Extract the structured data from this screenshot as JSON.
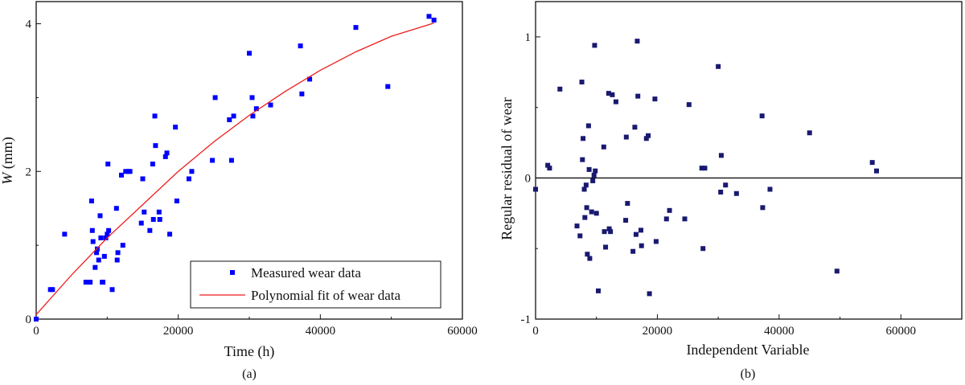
{
  "chart_data": [
    {
      "type": "scatter",
      "panel_label": "(a)",
      "xlabel": "Time (h)",
      "ylabel_var": "W",
      "ylabel_unit": " (mm)",
      "xlim": [
        0,
        60000
      ],
      "ylim": [
        0,
        4.3
      ],
      "xticks": [
        0,
        20000,
        40000,
        60000
      ],
      "yticks": [
        0,
        2,
        4
      ],
      "grid": false,
      "legend": "bottom-right",
      "series": [
        {
          "name": "Measured wear data",
          "kind": "scatter",
          "color": "#0000ff",
          "points": [
            [
              0,
              0
            ],
            [
              2000,
              0.4
            ],
            [
              2300,
              0.4
            ],
            [
              4000,
              1.15
            ],
            [
              7000,
              0.5
            ],
            [
              7300,
              0.5
            ],
            [
              7600,
              0.5
            ],
            [
              7800,
              1.6
            ],
            [
              7900,
              1.2
            ],
            [
              8000,
              1.05
            ],
            [
              8300,
              0.7
            ],
            [
              8500,
              0.9
            ],
            [
              8600,
              0.95
            ],
            [
              8800,
              0.8
            ],
            [
              9000,
              1.4
            ],
            [
              9100,
              1.1
            ],
            [
              9300,
              0.5
            ],
            [
              9400,
              0.5
            ],
            [
              9600,
              0.85
            ],
            [
              9800,
              1.1
            ],
            [
              10000,
              1.15
            ],
            [
              10100,
              2.1
            ],
            [
              10200,
              1.2
            ],
            [
              10700,
              0.4
            ],
            [
              11300,
              1.5
            ],
            [
              11400,
              0.8
            ],
            [
              11500,
              0.9
            ],
            [
              12000,
              1.95
            ],
            [
              12200,
              1.0
            ],
            [
              12600,
              2.0
            ],
            [
              13000,
              2.0
            ],
            [
              13200,
              2.0
            ],
            [
              14800,
              1.3
            ],
            [
              15000,
              1.9
            ],
            [
              15200,
              1.45
            ],
            [
              16000,
              1.2
            ],
            [
              16400,
              2.1
            ],
            [
              16500,
              1.35
            ],
            [
              16700,
              2.75
            ],
            [
              16800,
              2.35
            ],
            [
              17300,
              1.45
            ],
            [
              17400,
              1.35
            ],
            [
              18200,
              2.2
            ],
            [
              18400,
              2.25
            ],
            [
              18800,
              1.15
            ],
            [
              19600,
              2.6
            ],
            [
              19800,
              1.6
            ],
            [
              21500,
              1.9
            ],
            [
              21900,
              2.0
            ],
            [
              24800,
              2.15
            ],
            [
              25200,
              3.0
            ],
            [
              27200,
              2.7
            ],
            [
              27500,
              2.15
            ],
            [
              27800,
              2.75
            ],
            [
              30000,
              3.6
            ],
            [
              30400,
              3.0
            ],
            [
              30500,
              2.75
            ],
            [
              31000,
              2.85
            ],
            [
              33000,
              2.9
            ],
            [
              37200,
              3.7
            ],
            [
              37400,
              3.05
            ],
            [
              38500,
              3.25
            ],
            [
              45000,
              3.95
            ],
            [
              49500,
              3.15
            ],
            [
              55300,
              4.1
            ],
            [
              56000,
              4.05
            ]
          ]
        },
        {
          "name": "Polynomial fit of wear data",
          "kind": "line",
          "color": "#ee1c1c",
          "points": [
            [
              0,
              0.06
            ],
            [
              5000,
              0.6
            ],
            [
              10000,
              1.1
            ],
            [
              15000,
              1.55
            ],
            [
              20000,
              2.0
            ],
            [
              25000,
              2.4
            ],
            [
              30000,
              2.76
            ],
            [
              35000,
              3.08
            ],
            [
              40000,
              3.37
            ],
            [
              45000,
              3.62
            ],
            [
              50000,
              3.83
            ],
            [
              56000,
              4.01
            ]
          ]
        }
      ]
    },
    {
      "type": "scatter",
      "panel_label": "(b)",
      "xlabel": "Independent Variable",
      "ylabel": "Regular residual of  wear",
      "xlim": [
        0,
        70000
      ],
      "ylim": [
        -1,
        1.25
      ],
      "xticks": [
        0,
        20000,
        40000,
        60000
      ],
      "yticks": [
        -1,
        0,
        1
      ],
      "grid": false,
      "zero_line": true,
      "series": [
        {
          "kind": "scatter",
          "color": "#191970",
          "points": [
            [
              0,
              -0.08
            ],
            [
              2000,
              0.09
            ],
            [
              2300,
              0.07
            ],
            [
              4000,
              0.63
            ],
            [
              6800,
              -0.34
            ],
            [
              7300,
              -0.41
            ],
            [
              7600,
              0.68
            ],
            [
              7700,
              0.13
            ],
            [
              7800,
              0.28
            ],
            [
              8000,
              -0.08
            ],
            [
              8100,
              -0.28
            ],
            [
              8300,
              -0.05
            ],
            [
              8400,
              -0.21
            ],
            [
              8500,
              -0.54
            ],
            [
              8700,
              0.37
            ],
            [
              8800,
              0.06
            ],
            [
              8900,
              -0.57
            ],
            [
              9200,
              -0.24
            ],
            [
              9400,
              -0.02
            ],
            [
              9600,
              0.02
            ],
            [
              9700,
              0.94
            ],
            [
              9800,
              0.05
            ],
            [
              10000,
              -0.25
            ],
            [
              10300,
              -0.8
            ],
            [
              11200,
              0.22
            ],
            [
              11300,
              -0.38
            ],
            [
              11500,
              -0.49
            ],
            [
              12000,
              0.6
            ],
            [
              12100,
              -0.36
            ],
            [
              12300,
              -0.38
            ],
            [
              12600,
              0.59
            ],
            [
              13200,
              0.54
            ],
            [
              14800,
              -0.3
            ],
            [
              14900,
              0.29
            ],
            [
              15100,
              -0.18
            ],
            [
              16000,
              -0.52
            ],
            [
              16300,
              0.36
            ],
            [
              16500,
              -0.4
            ],
            [
              16700,
              0.97
            ],
            [
              16800,
              0.58
            ],
            [
              17300,
              -0.37
            ],
            [
              17400,
              -0.48
            ],
            [
              18200,
              0.28
            ],
            [
              18500,
              0.3
            ],
            [
              18700,
              -0.82
            ],
            [
              19600,
              0.56
            ],
            [
              19800,
              -0.45
            ],
            [
              21500,
              -0.29
            ],
            [
              22000,
              -0.23
            ],
            [
              24500,
              -0.29
            ],
            [
              25200,
              0.52
            ],
            [
              27300,
              0.07
            ],
            [
              27500,
              -0.5
            ],
            [
              27800,
              0.07
            ],
            [
              30000,
              0.79
            ],
            [
              30400,
              -0.1
            ],
            [
              30500,
              0.16
            ],
            [
              31200,
              -0.05
            ],
            [
              33000,
              -0.11
            ],
            [
              37200,
              0.44
            ],
            [
              37300,
              -0.21
            ],
            [
              38500,
              -0.08
            ],
            [
              45000,
              0.32
            ],
            [
              49500,
              -0.66
            ],
            [
              55300,
              0.11
            ],
            [
              56000,
              0.05
            ]
          ]
        }
      ]
    }
  ]
}
